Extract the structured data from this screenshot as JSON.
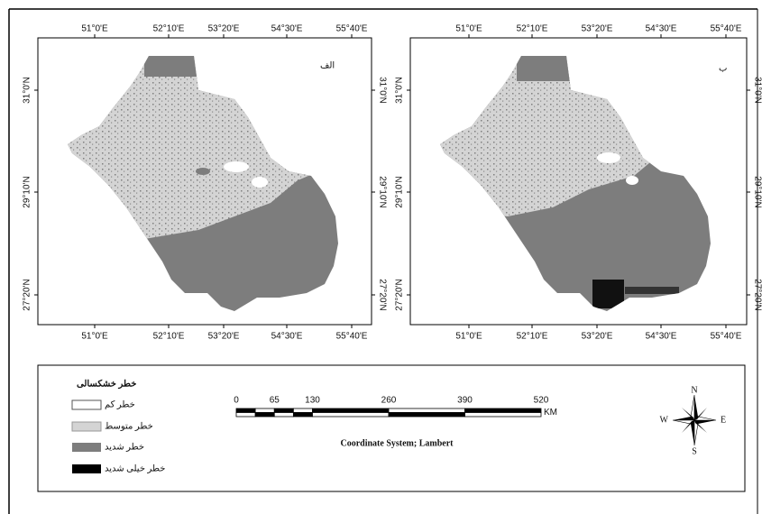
{
  "maps": [
    {
      "label": "الف",
      "lon_labels": [
        "51°0'E",
        "52°10'E",
        "53°20'E",
        "54°30'E",
        "55°40'E"
      ],
      "lat_labels": [
        "31°0'N",
        "29°10'N",
        "27°20'N"
      ]
    },
    {
      "label": "ب",
      "lon_labels": [
        "51°0'E",
        "52°10'E",
        "53°20'E",
        "54°30'E",
        "55°40'E"
      ],
      "lat_labels": [
        "31°0'N",
        "29°10'N",
        "27°20'N"
      ]
    }
  ],
  "legend": {
    "title": "خطر خشکسالی",
    "items": [
      "خطر کم",
      "خطر متوسط",
      "خطر شدید",
      "خطر خیلی شدید"
    ]
  },
  "scale_bar": {
    "ticks": [
      0,
      65,
      130,
      260,
      390,
      520
    ],
    "unit": "KM"
  },
  "coordinate_system": "Coordinate System; Lambert",
  "north_arrow": {
    "n": "N",
    "s": "S",
    "e": "E",
    "w": "W"
  }
}
